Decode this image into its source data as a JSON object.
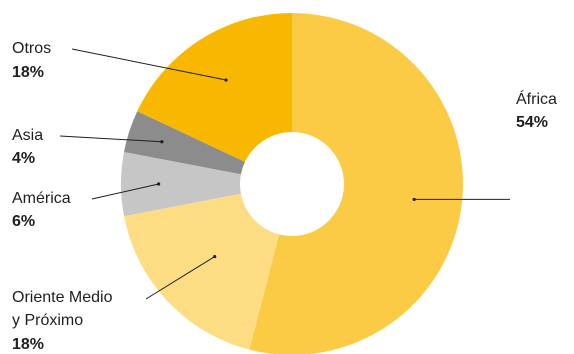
{
  "chart_data": {
    "type": "pie",
    "variant": "donut",
    "title": "",
    "slices": [
      {
        "label": "África",
        "value": 54,
        "value_label": "54%",
        "color": "#FBCB45",
        "label_side": "right"
      },
      {
        "label": "Oriente Medio y Próximo",
        "label_lines": [
          "Oriente Medio",
          "y Próximo"
        ],
        "value": 18,
        "value_label": "18%",
        "color": "#FCDD84",
        "label_side": "left"
      },
      {
        "label": "América",
        "value": 6,
        "value_label": "6%",
        "color": "#C6C6C6",
        "label_side": "left"
      },
      {
        "label": "Asia",
        "value": 4,
        "value_label": "4%",
        "color": "#8C8C8C",
        "label_side": "left"
      },
      {
        "label": "Otros",
        "value": 18,
        "value_label": "18%",
        "color": "#F8B800",
        "label_side": "left"
      }
    ],
    "start": "top",
    "direction": "clockwise",
    "legend": "none"
  }
}
